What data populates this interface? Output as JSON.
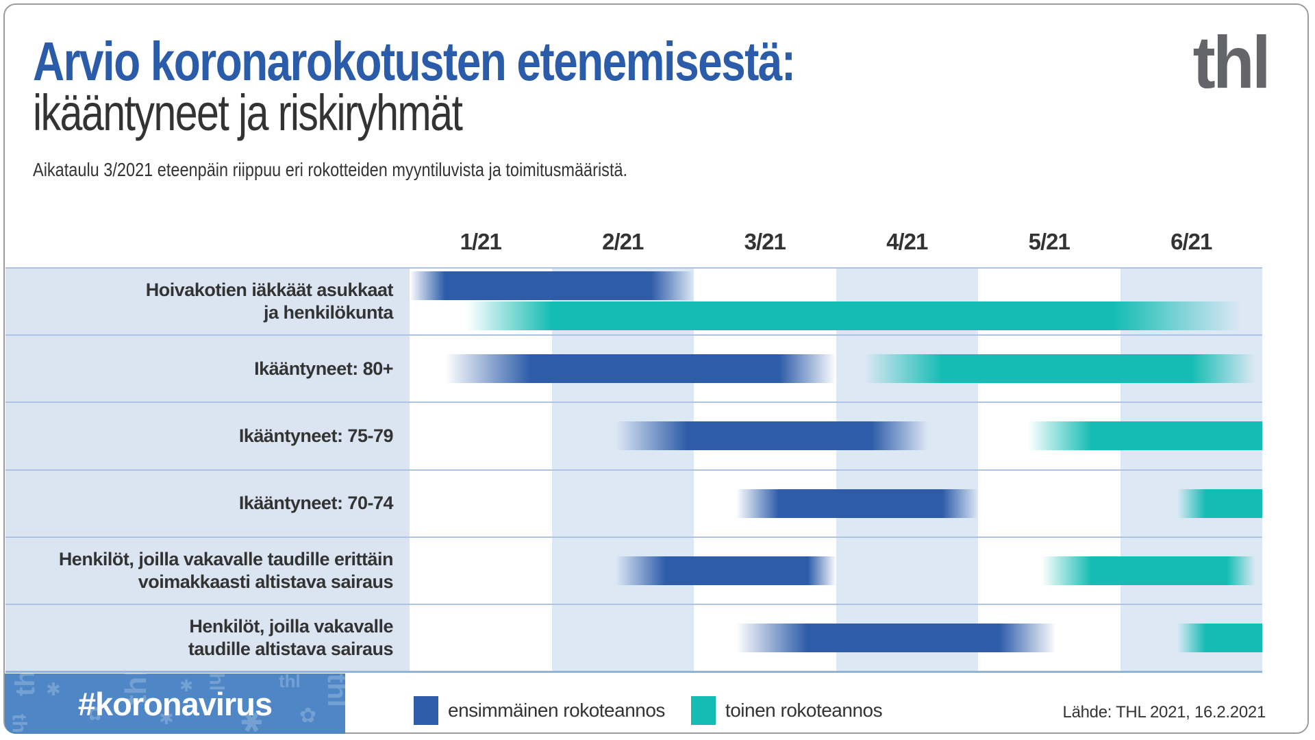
{
  "header": {
    "title_line1": "Arvio koronarokotusten etenemisestä:",
    "title_line2": "ikääntyneet ja riskiryhmät",
    "subtitle": "Aikataulu 3/2021 eteenpäin riippuu eri rokotteiden myyntiluvista ja toimitusmääristä.",
    "logo_text": "thl"
  },
  "colors": {
    "first_dose": "#2e5ca9",
    "second_dose": "#14bcb3",
    "column_band": "#dde8f5",
    "label_bg": "#dbe5f2",
    "title_accent": "#2b5ca9",
    "footer_strip": "#4e86c6"
  },
  "chart_data": {
    "type": "gantt",
    "title": "Arvio koronarokotusten etenemisestä: ikääntyneet ja riskiryhmät",
    "x_axis_months": [
      "1/21",
      "2/21",
      "3/21",
      "4/21",
      "5/21",
      "6/21"
    ],
    "x_range": [
      0,
      6
    ],
    "shaded_columns": [
      "2/21",
      "4/21",
      "6/21"
    ],
    "series_legend": [
      "ensimmäinen rokoteannos",
      "toinen rokoteannos"
    ],
    "note": "bar positions in month units from start of 1/21; fade = gradient ramp",
    "rows": [
      {
        "label_lines": [
          "Hoivakotien iäkkäät asukkaat",
          "ja henkilökunta"
        ],
        "stacked": true,
        "first_dose": {
          "start": 0.0,
          "solid_start": 0.25,
          "solid_end": 1.7,
          "end": 2.0
        },
        "second_dose": {
          "start": 0.4,
          "solid_start": 1.0,
          "solid_end": 4.95,
          "end": 5.85
        }
      },
      {
        "label_lines": [
          "Ikääntyneet: 80+"
        ],
        "stacked": false,
        "first_dose": {
          "start": 0.25,
          "solid_start": 0.85,
          "solid_end": 2.6,
          "end": 3.0
        },
        "second_dose": {
          "start": 3.2,
          "solid_start": 3.75,
          "solid_end": 5.5,
          "end": 5.95
        }
      },
      {
        "label_lines": [
          "Ikääntyneet: 75-79"
        ],
        "stacked": false,
        "first_dose": {
          "start": 1.45,
          "solid_start": 1.95,
          "solid_end": 3.25,
          "end": 3.65
        },
        "second_dose": {
          "start": 4.35,
          "solid_start": 4.8,
          "solid_end": 6.0,
          "end": 6.0
        }
      },
      {
        "label_lines": [
          "Ikääntyneet: 70-74"
        ],
        "stacked": false,
        "first_dose": {
          "start": 2.3,
          "solid_start": 2.6,
          "solid_end": 3.75,
          "end": 4.0
        },
        "second_dose": {
          "start": 5.4,
          "solid_start": 5.6,
          "solid_end": 6.0,
          "end": 6.0
        }
      },
      {
        "label_lines": [
          "Henkilöt, joilla vakavalle taudille erittäin",
          "voimakkaasti altistava sairaus"
        ],
        "stacked": false,
        "first_dose": {
          "start": 1.45,
          "solid_start": 1.8,
          "solid_end": 2.8,
          "end": 3.0
        },
        "second_dose": {
          "start": 4.45,
          "solid_start": 4.8,
          "solid_end": 5.75,
          "end": 5.95
        }
      },
      {
        "label_lines": [
          "Henkilöt, joilla vakavalle",
          "taudille altistava sairaus"
        ],
        "stacked": false,
        "first_dose": {
          "start": 2.3,
          "solid_start": 2.8,
          "solid_end": 4.15,
          "end": 4.55
        },
        "second_dose": {
          "start": 5.4,
          "solid_start": 5.6,
          "solid_end": 6.0,
          "end": 6.0
        }
      }
    ]
  },
  "legend": {
    "first_dose_label": "ensimmäinen rokoteannos",
    "second_dose_label": "toinen rokoteannos"
  },
  "footer": {
    "hashtag": "#koronavirus",
    "source": "Lähde: THL 2021, 16.2.2021",
    "pattern_glyphs": [
      "thl",
      "✱",
      "thl",
      "✿",
      "thl",
      "✱",
      "thl",
      "✱",
      "thl",
      "✿",
      "thl",
      "✱"
    ]
  }
}
